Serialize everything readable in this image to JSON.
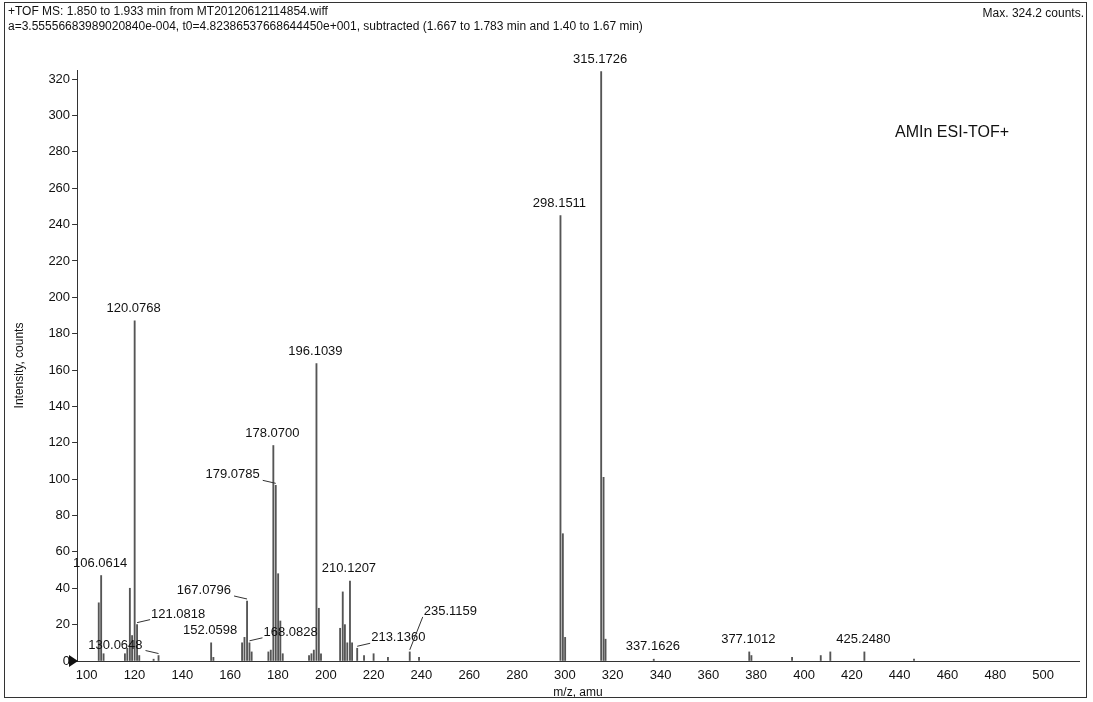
{
  "chart_data": {
    "type": "bar",
    "title": "+TOF MS: 1.850 to 1.933 min from MT20120612114854.wiff",
    "subtitle": "a=3.55556683989020840e-004, t0=4.82386537668644450e+001, subtracted (1.667 to 1.783 min and 1.40 to 1.67 min)",
    "xlabel": "m/z, amu",
    "ylabel": "Intensity, counts",
    "x": [
      105.06,
      106.0614,
      107.07,
      116,
      117,
      118.07,
      119,
      120.0768,
      121.0818,
      122,
      128,
      130.0648,
      152.0598,
      153,
      165,
      166,
      167.0796,
      168.0828,
      169,
      176,
      177,
      178.07,
      179.0785,
      180.08,
      181,
      182,
      193,
      194,
      195,
      196.1039,
      197.1,
      198,
      206,
      207.1,
      208,
      209,
      210.1207,
      211,
      213.136,
      216,
      220,
      226,
      235.1159,
      239,
      298.1511,
      299.15,
      300.1,
      315.1726,
      316.17,
      317,
      337.1626,
      377.1012,
      378,
      395,
      407,
      411,
      425.248,
      446
    ],
    "values": [
      32,
      47,
      4,
      4,
      7,
      40,
      14,
      187,
      20,
      3,
      1,
      3,
      10,
      2,
      10,
      13,
      33,
      10,
      5,
      5,
      6,
      118.5,
      96.6,
      48,
      22,
      4,
      3,
      4,
      6,
      163.5,
      29,
      4,
      18,
      38,
      20,
      10,
      44,
      10,
      7,
      3,
      4,
      2,
      5,
      2,
      245,
      70,
      13,
      324.2,
      101,
      12,
      1,
      5,
      3,
      2,
      3,
      5,
      5,
      1
    ],
    "color": "#555555",
    "xlim": [
      96,
      515
    ],
    "xticks": [
      100,
      120,
      140,
      160,
      180,
      200,
      220,
      240,
      260,
      280,
      300,
      320,
      340,
      360,
      380,
      400,
      420,
      440,
      460,
      480,
      500
    ],
    "ylim": [
      0,
      325
    ],
    "yticks": [
      0,
      20,
      40,
      60,
      80,
      100,
      120,
      140,
      160,
      180,
      200,
      220,
      240,
      260,
      280,
      300,
      320
    ],
    "grid": false,
    "legend": false,
    "annotations": [
      "Max. 324.2 counts.",
      "AMIn ESI-TOF+",
      {
        "text": "106.0614",
        "x": 106.0614,
        "y": 47
      },
      {
        "text": "120.0768",
        "x": 120.0768,
        "y": 187
      },
      {
        "text": "121.0818",
        "x": 121.0818,
        "y": 20
      },
      {
        "text": "130.0648",
        "x": 130.0648,
        "y": 3
      },
      {
        "text": "152.0598",
        "x": 152.0598,
        "y": 10
      },
      {
        "text": "167.0796",
        "x": 167.0796,
        "y": 33
      },
      {
        "text": "168.0828",
        "x": 168.0828,
        "y": 10
      },
      {
        "text": "178.0700",
        "x": 178.07,
        "y": 118.5
      },
      {
        "text": "179.0785",
        "x": 179.0785,
        "y": 96.6
      },
      {
        "text": "196.1039",
        "x": 196.1039,
        "y": 163.5
      },
      {
        "text": "210.1207",
        "x": 210.1207,
        "y": 44
      },
      {
        "text": "213.1360",
        "x": 213.136,
        "y": 7
      },
      {
        "text": "235.1159",
        "x": 235.1159,
        "y": 5
      },
      {
        "text": "298.1511",
        "x": 298.1511,
        "y": 245
      },
      {
        "text": "315.1726",
        "x": 315.1726,
        "y": 324.2
      },
      {
        "text": "337.1626",
        "x": 337.1626,
        "y": 1
      },
      {
        "text": "377.1012",
        "x": 377.1012,
        "y": 5
      },
      {
        "text": "425.2480",
        "x": 425.248,
        "y": 5
      }
    ]
  }
}
